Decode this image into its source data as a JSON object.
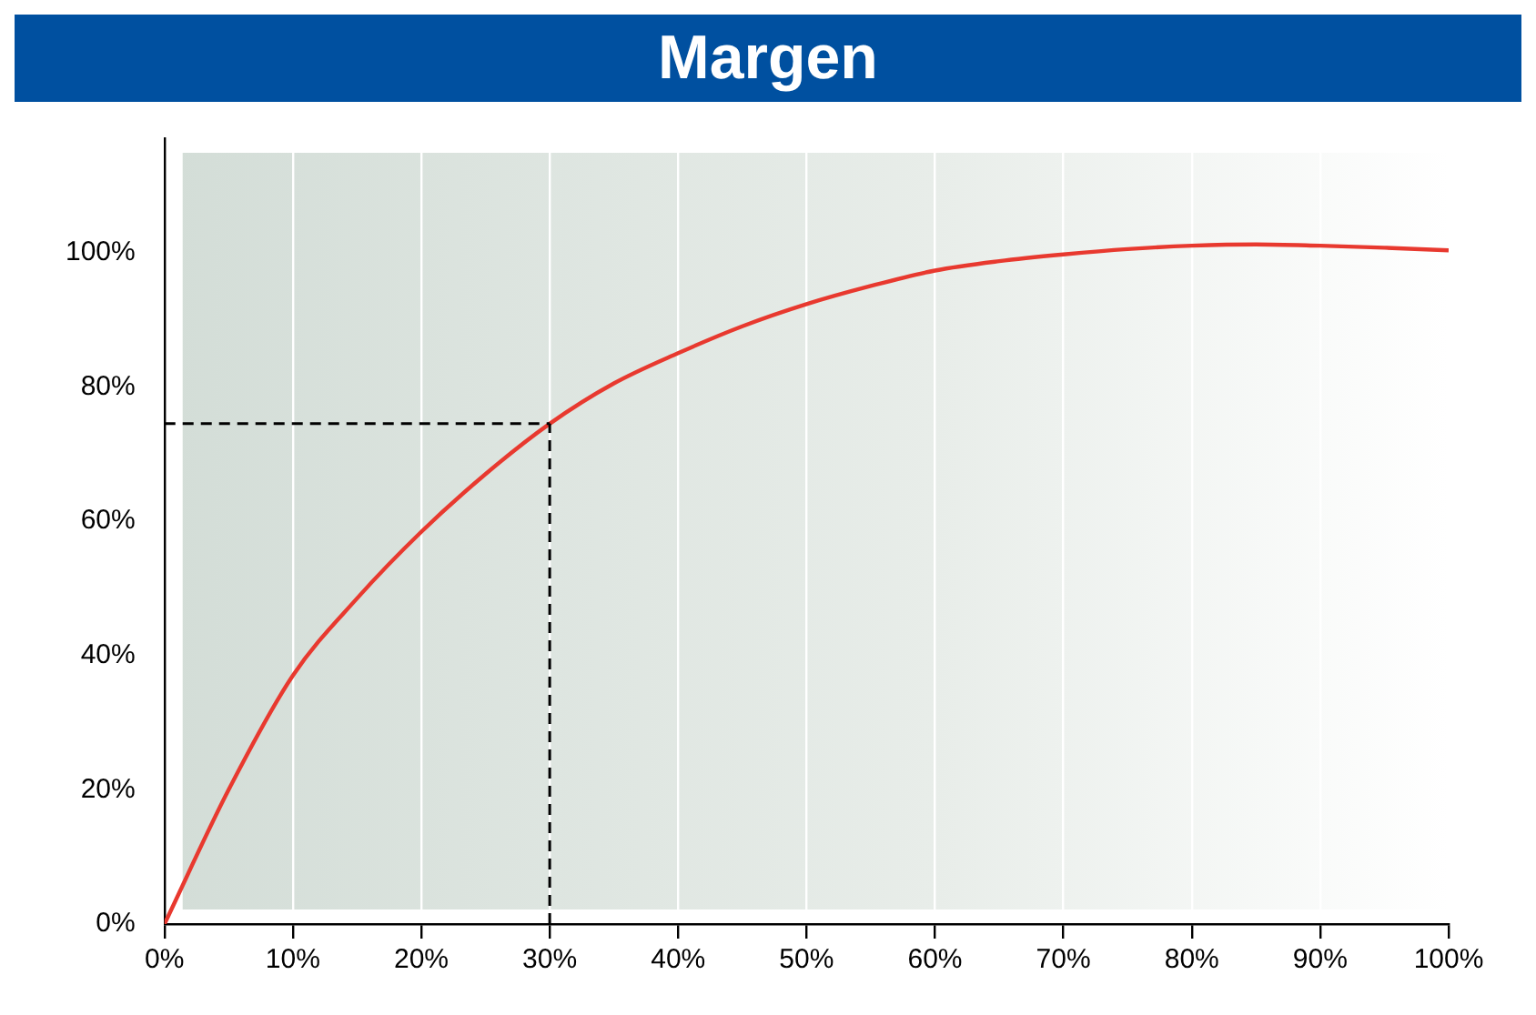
{
  "chart_data": {
    "type": "line",
    "title": "Margen",
    "x": [
      0,
      5,
      10,
      15,
      20,
      25,
      30,
      35,
      40,
      45,
      50,
      55,
      60,
      65,
      70,
      75,
      80,
      85,
      90,
      95,
      100
    ],
    "series": [
      {
        "color": "#e8392f",
        "values": [
          0,
          20,
          37,
          48.5,
          58.4,
          67,
          74.5,
          80.5,
          85,
          89,
          92.3,
          95,
          97.3,
          98.7,
          99.7,
          100.5,
          101,
          101.2,
          101,
          100.7,
          100.3
        ]
      }
    ],
    "xlim": [
      0,
      100
    ],
    "ylim": [
      0,
      117
    ],
    "xticks": [
      {
        "value": 0,
        "label": "0%"
      },
      {
        "value": 10,
        "label": "10%"
      },
      {
        "value": 20,
        "label": "20%"
      },
      {
        "value": 30,
        "label": "30%"
      },
      {
        "value": 40,
        "label": "40%"
      },
      {
        "value": 50,
        "label": "50%"
      },
      {
        "value": 60,
        "label": "60%"
      },
      {
        "value": 70,
        "label": "70%"
      },
      {
        "value": 80,
        "label": "80%"
      },
      {
        "value": 90,
        "label": "90%"
      },
      {
        "value": 100,
        "label": "100%"
      }
    ],
    "yticks": [
      {
        "value": 0,
        "label": "0%"
      },
      {
        "value": 20,
        "label": "20%"
      },
      {
        "value": 40,
        "label": "40%"
      },
      {
        "value": 60,
        "label": "60%"
      },
      {
        "value": 80,
        "label": "80%"
      },
      {
        "value": 100,
        "label": "100%"
      }
    ],
    "ref_lines": [
      {
        "axis": "x",
        "value": 30,
        "color": "#000000",
        "line_style": "dashed"
      },
      {
        "axis": "y",
        "value": 74.5,
        "color": "#000000",
        "line_style": "dashed"
      }
    ],
    "grid": "x",
    "marker": "none",
    "line_style": "solid",
    "legend": false
  }
}
